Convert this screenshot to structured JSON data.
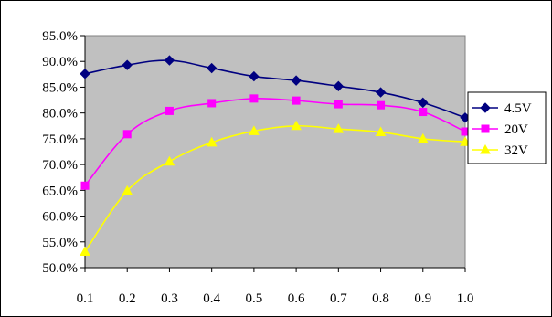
{
  "chart_data": {
    "type": "line",
    "title": "",
    "xlabel": "",
    "ylabel": "",
    "x": [
      0.1,
      0.2,
      0.3,
      0.4,
      0.5,
      0.6,
      0.7,
      0.8,
      0.9,
      1.0
    ],
    "x_tick_labels": [
      "0.1",
      "0.2",
      "0.3",
      "0.4",
      "0.5",
      "0.6",
      "0.7",
      "0.8",
      "0.9",
      "1.0"
    ],
    "ylim": [
      50.0,
      95.0
    ],
    "y_ticks": [
      50.0,
      55.0,
      60.0,
      65.0,
      70.0,
      75.0,
      80.0,
      85.0,
      90.0,
      95.0
    ],
    "y_tick_labels": [
      "50.0%",
      "55.0%",
      "60.0%",
      "65.0%",
      "70.0%",
      "75.0%",
      "80.0%",
      "85.0%",
      "90.0%",
      "95.0%"
    ],
    "grid": false,
    "plot_background": "#C0C0C0",
    "legend_position": "right",
    "series": [
      {
        "name": "4.5V",
        "color": "#000080",
        "marker": "diamond",
        "values": [
          87.6,
          89.3,
          90.2,
          88.7,
          87.1,
          86.3,
          85.2,
          84.0,
          82.0,
          79.1
        ]
      },
      {
        "name": "20V",
        "color": "#FF00FF",
        "marker": "square",
        "values": [
          65.9,
          75.9,
          80.4,
          81.9,
          82.8,
          82.4,
          81.7,
          81.5,
          80.2,
          76.4
        ]
      },
      {
        "name": "32V",
        "color": "#FFFF00",
        "marker": "triangle",
        "values": [
          53.1,
          64.9,
          70.6,
          74.3,
          76.5,
          77.5,
          76.9,
          76.3,
          75.0,
          74.4
        ]
      }
    ]
  }
}
